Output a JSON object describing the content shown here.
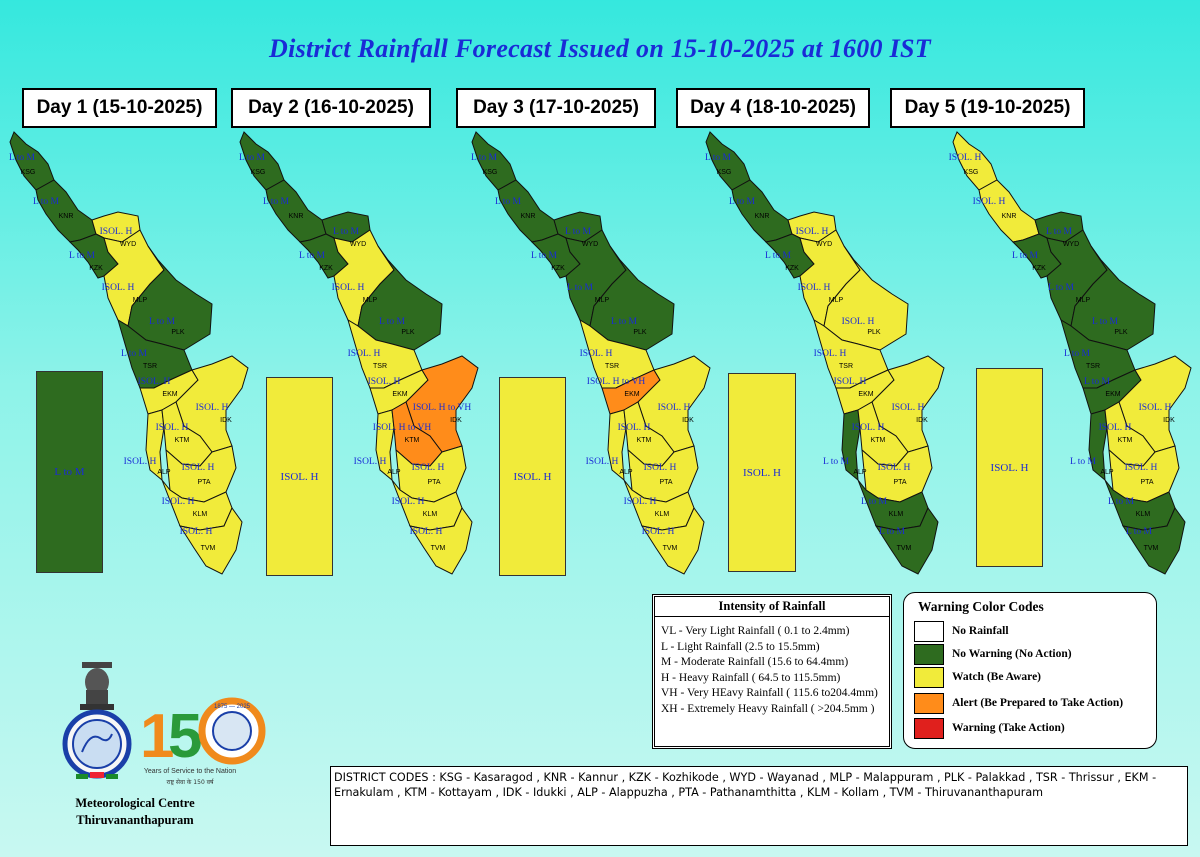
{
  "title": "District Rainfall Forecast Issued on  15-10-2025 at 1600 IST",
  "colors": {
    "no_rainfall": "#ffffff",
    "green": "#2e6b1f",
    "yellow": "#f1eb3a",
    "orange": "#ff8c1a",
    "red": "#e0201d",
    "label_blue": "#1a2bd6"
  },
  "district_codes_order": [
    "KSG",
    "KNR",
    "WYD",
    "KZK",
    "MLP",
    "PLK",
    "TSR",
    "EKM",
    "IDK",
    "KTM",
    "ALP",
    "PTA",
    "KLM",
    "TVM"
  ],
  "days": [
    {
      "label": "Day 1 (15-10-2025)",
      "districts": {
        "KSG": "green",
        "KNR": "green",
        "WYD": "yellow",
        "KZK": "green",
        "MLP": "yellow",
        "PLK": "green",
        "TSR": "green",
        "EKM": "yellow",
        "IDK": "yellow",
        "KTM": "yellow",
        "ALP": "yellow",
        "PTA": "yellow",
        "KLM": "yellow",
        "TVM": "yellow"
      },
      "forecast_labels": [
        "L to M",
        "L to M",
        "ISOL. H",
        "L to M",
        "ISOL. H",
        "L to M",
        "L to M",
        "ISOL. H",
        "ISOL. H",
        "ISOL. H",
        "ISOL. H",
        "ISOL. H",
        "ISOL. H",
        "ISOL. H"
      ],
      "box_color": "green",
      "box_label": "L to M"
    },
    {
      "label": "Day 2 (16-10-2025)",
      "districts": {
        "KSG": "green",
        "KNR": "green",
        "WYD": "green",
        "KZK": "green",
        "MLP": "yellow",
        "PLK": "green",
        "TSR": "yellow",
        "EKM": "yellow",
        "IDK": "orange",
        "KTM": "orange",
        "ALP": "yellow",
        "PTA": "yellow",
        "KLM": "yellow",
        "TVM": "yellow"
      },
      "forecast_labels": [
        "L to M",
        "L to M",
        "L to M",
        "L to M",
        "ISOL. H",
        "L to M",
        "ISOL. H",
        "ISOL. H",
        "ISOL. H to VH",
        "ISOL. H to VH",
        "ISOL. H",
        "ISOL. H",
        "ISOL. H",
        "ISOL. H"
      ],
      "box_color": "yellow",
      "box_label": "ISOL. H"
    },
    {
      "label": "Day 3 (17-10-2025)",
      "districts": {
        "KSG": "green",
        "KNR": "green",
        "WYD": "green",
        "KZK": "green",
        "MLP": "green",
        "PLK": "green",
        "TSR": "yellow",
        "EKM": "orange",
        "IDK": "yellow",
        "KTM": "yellow",
        "ALP": "yellow",
        "PTA": "yellow",
        "KLM": "yellow",
        "TVM": "yellow"
      },
      "forecast_labels": [
        "L to M",
        "L to M",
        "L to M",
        "L to M",
        "L to M",
        "L to M",
        "ISOL. H",
        "ISOL. H to VH",
        "ISOL. H",
        "ISOL. H",
        "ISOL. H",
        "ISOL. H",
        "ISOL. H",
        "ISOL. H"
      ],
      "box_color": "yellow",
      "box_label": "ISOL. H"
    },
    {
      "label": "Day 4 (18-10-2025)",
      "districts": {
        "KSG": "green",
        "KNR": "green",
        "WYD": "yellow",
        "KZK": "green",
        "MLP": "yellow",
        "PLK": "yellow",
        "TSR": "yellow",
        "EKM": "yellow",
        "IDK": "yellow",
        "KTM": "yellow",
        "ALP": "green",
        "PTA": "yellow",
        "KLM": "green",
        "TVM": "green"
      },
      "forecast_labels": [
        "L to M",
        "L to M",
        "ISOL. H",
        "L to M",
        "ISOL. H",
        "ISOL. H",
        "ISOL. H",
        "ISOL. H",
        "ISOL. H",
        "ISOL. H",
        "L to M",
        "ISOL. H",
        "L to M",
        "L to M"
      ],
      "box_color": "yellow",
      "box_label": "ISOL. H"
    },
    {
      "label": "Day 5 (19-10-2025)",
      "districts": {
        "KSG": "yellow",
        "KNR": "yellow",
        "WYD": "green",
        "KZK": "green",
        "MLP": "green",
        "PLK": "green",
        "TSR": "green",
        "EKM": "green",
        "IDK": "yellow",
        "KTM": "yellow",
        "ALP": "green",
        "PTA": "yellow",
        "KLM": "green",
        "TVM": "green"
      },
      "forecast_labels": [
        "ISOL. H",
        "ISOL. H",
        "L to M",
        "L to M",
        "L to M",
        "L to M",
        "L to M",
        "L to M",
        "ISOL. H",
        "ISOL. H",
        "L to M",
        "ISOL. H",
        "L to M",
        "L to M"
      ],
      "box_color": "yellow",
      "box_label": "ISOL. H"
    }
  ],
  "intensity": {
    "heading": "Intensity of Rainfall",
    "lines": [
      "VL - Very Light Rainfall ( 0.1 to 2.4mm)",
      "L  - Light Rainfall (2.5 to 15.5mm)",
      "M  - Moderate Rainfall (15.6 to 64.4mm)",
      "H  - Heavy Rainfall ( 64.5 to 115.5mm)",
      "VH - Very HEavy Rainfall ( 115.6 to204.4mm)",
      "XH - Extremely Heavy Rainfall ( >204.5mm )"
    ]
  },
  "warning": {
    "heading": "Warning Color Codes",
    "items": [
      {
        "color": "#ffffff",
        "label": "No Rainfall"
      },
      {
        "color": "#2e6b1f",
        "label": "No Warning (No Action)"
      },
      {
        "color": "#f1eb3a",
        "label": "Watch (Be Aware)"
      },
      {
        "color": "#ff8c1a",
        "label": "Alert (Be Prepared to Take Action)"
      },
      {
        "color": "#e0201d",
        "label": "Warning (Take Action)"
      }
    ]
  },
  "district_codes_text": "DISTRICT CODES : KSG - Kasaragod , KNR - Kannur , KZK - Kozhikode , WYD - Wayanad , MLP - Malappuram , PLK - Palakkad , TSR - Thrissur , EKM - Ernakulam , KTM - Kottayam , IDK - Idukki , ALP - Alappuzha ,      PTA - Pathanamthitta , KLM - Kollam , TVM - Thiruvananthapuram",
  "logo_150": {
    "number": "150",
    "years": "1875 — 2025",
    "tagline": "Years of Service to the Nation",
    "tagline_hindi": "राष्ट्र सेवा के 150 वर्ष"
  },
  "org": {
    "line1": "Meteorological Centre",
    "line2": "Thiruvananthapuram"
  }
}
